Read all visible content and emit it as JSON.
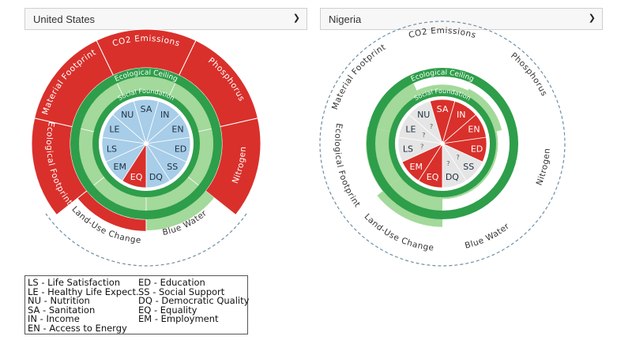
{
  "selectors": [
    {
      "selected": "United States",
      "icon": "chevron-down-icon"
    },
    {
      "selected": "Nigeria",
      "icon": "chevron-down-icon"
    }
  ],
  "legend": [
    [
      "LS - Life Satisfaction",
      "LE - Healthy Life Expect.",
      "NU - Nutrition",
      "SA - Sanitation",
      "IN - Income",
      "EN - Access to Energy"
    ],
    [
      "ED - Education",
      "SS - Social Support",
      "DQ - Democratic Quality",
      "EQ - Equality",
      "EM - Employment"
    ]
  ],
  "colors": {
    "over": "#d9302b",
    "within": "#a3d99a",
    "ceiling": "#2e9e4a",
    "social_ok": "#a7cde8",
    "social_short": "#d9302b",
    "unknown": "#e5e5e5",
    "dashed": "#6d8fa6"
  },
  "chart_data": [
    {
      "type": "doughnut",
      "country": "United States",
      "ring_labels": {
        "ceiling": "Ecological Ceiling",
        "foundation": "Social Foundation"
      },
      "ecological": [
        {
          "label": "CO2 Emissions",
          "status": "over",
          "ratio": 1.8
        },
        {
          "label": "Phosphorus",
          "status": "over",
          "ratio": 1.8
        },
        {
          "label": "Nitrogen",
          "status": "over",
          "ratio": 1.8
        },
        {
          "label": "Blue Water",
          "status": "within",
          "ratio": 1.0
        },
        {
          "label": "Land-Use Change",
          "status": "over",
          "ratio": 1.25
        },
        {
          "label": "Ecological Footprint",
          "status": "over",
          "ratio": 1.8
        },
        {
          "label": "Material Footprint",
          "status": "over",
          "ratio": 1.8
        }
      ],
      "social": [
        {
          "label": "NU",
          "status": "ok"
        },
        {
          "label": "SA",
          "status": "ok"
        },
        {
          "label": "IN",
          "status": "ok"
        },
        {
          "label": "EN",
          "status": "ok"
        },
        {
          "label": "ED",
          "status": "ok"
        },
        {
          "label": "SS",
          "status": "ok"
        },
        {
          "label": "DQ",
          "status": "ok"
        },
        {
          "label": "EQ",
          "status": "short"
        },
        {
          "label": "EM",
          "status": "ok"
        },
        {
          "label": "LS",
          "status": "ok"
        },
        {
          "label": "LE",
          "status": "ok"
        }
      ]
    },
    {
      "type": "doughnut",
      "country": "Nigeria",
      "ring_labels": {
        "ceiling": "Ecological Ceiling",
        "foundation": "Social Foundation"
      },
      "ecological": [
        {
          "label": "CO2 Emissions",
          "status": "within",
          "ratio": 0.2
        },
        {
          "label": "Phosphorus",
          "status": "within",
          "ratio": 0.25
        },
        {
          "label": "Nitrogen",
          "status": "within",
          "ratio": 0.1
        },
        {
          "label": "Blue Water",
          "status": "within",
          "ratio": 0.1
        },
        {
          "label": "Land-Use Change",
          "status": "within",
          "ratio": 0.9
        },
        {
          "label": "Ecological Footprint",
          "status": "within",
          "ratio": 0.7
        },
        {
          "label": "Material Footprint",
          "status": "within",
          "ratio": 0.45
        }
      ],
      "social": [
        {
          "label": "NU",
          "status": "unknown"
        },
        {
          "label": "SA",
          "status": "short"
        },
        {
          "label": "IN",
          "status": "short"
        },
        {
          "label": "EN",
          "status": "short"
        },
        {
          "label": "ED",
          "status": "short"
        },
        {
          "label": "SS",
          "status": "unknown"
        },
        {
          "label": "DQ",
          "status": "unknown"
        },
        {
          "label": "EQ",
          "status": "short"
        },
        {
          "label": "EM",
          "status": "short"
        },
        {
          "label": "LS",
          "status": "unknown"
        },
        {
          "label": "LE",
          "status": "unknown"
        }
      ],
      "unknown_marker": "?"
    }
  ]
}
